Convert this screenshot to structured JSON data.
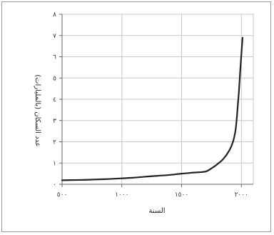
{
  "chart_data": {
    "type": "line",
    "xlabel": "السنة",
    "ylabel": "عدد السكان (بالمليارات)",
    "xlim": [
      500,
      2100
    ],
    "ylim": [
      0,
      8
    ],
    "x_ticks": [
      500,
      1000,
      1500,
      2000
    ],
    "x_tick_labels": [
      "٥٠٠",
      "١٠٠٠",
      "١٥٠٠",
      "٢٠٠٠"
    ],
    "y_ticks": [
      0,
      1,
      2,
      3,
      4,
      5,
      6,
      7,
      8
    ],
    "y_tick_labels": [
      "٠",
      "١",
      "٢",
      "٣",
      "٤",
      "٥",
      "٦",
      "٧",
      "٨"
    ],
    "grid": true,
    "series": [
      {
        "color": "#222222",
        "x": [
          500,
          600,
          700,
          800,
          900,
          1000,
          1100,
          1200,
          1300,
          1400,
          1500,
          1600,
          1700,
          1750,
          1800,
          1850,
          1900,
          1930,
          1950,
          1960,
          1970,
          1980,
          1990,
          2000,
          2010
        ],
        "y": [
          0.19,
          0.2,
          0.21,
          0.23,
          0.25,
          0.28,
          0.31,
          0.36,
          0.4,
          0.44,
          0.5,
          0.55,
          0.6,
          0.75,
          0.95,
          1.2,
          1.6,
          2.0,
          2.5,
          3.0,
          3.7,
          4.4,
          5.3,
          6.1,
          6.9
        ]
      }
    ]
  }
}
